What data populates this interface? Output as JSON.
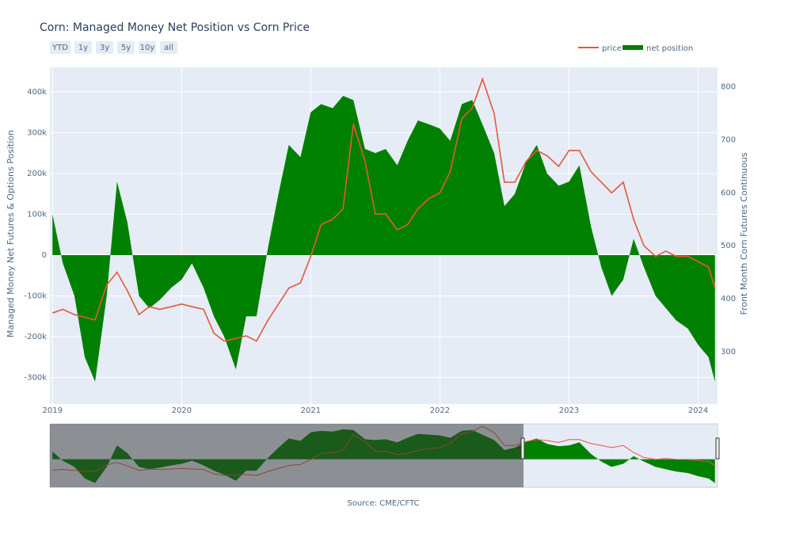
{
  "chart_data": {
    "type": "line",
    "title": "Corn: Managed Money Net Position vs Corn Price",
    "range_buttons": [
      "YTD",
      "1y",
      "3y",
      "5y",
      "10y",
      "all"
    ],
    "y_label": "Managed Money Net Futures & Options Position",
    "y2_label": "Front Month Corn Futures Continuous",
    "source": "Source: CME/CFTC",
    "x": [
      2019.0,
      2019.08,
      2019.17,
      2019.25,
      2019.33,
      2019.42,
      2019.5,
      2019.58,
      2019.67,
      2019.75,
      2019.83,
      2019.92,
      2020.0,
      2020.08,
      2020.17,
      2020.25,
      2020.33,
      2020.42,
      2020.5,
      2020.58,
      2020.67,
      2020.75,
      2020.83,
      2020.92,
      2021.0,
      2021.08,
      2021.17,
      2021.25,
      2021.33,
      2021.42,
      2021.5,
      2021.58,
      2021.67,
      2021.75,
      2021.83,
      2021.92,
      2022.0,
      2022.08,
      2022.17,
      2022.25,
      2022.33,
      2022.42,
      2022.5,
      2022.58,
      2022.67,
      2022.75,
      2022.83,
      2022.92,
      2023.0,
      2023.08,
      2023.17,
      2023.25,
      2023.33,
      2023.42,
      2023.5,
      2023.58,
      2023.67,
      2023.75,
      2023.83,
      2023.92,
      2024.0,
      2024.08,
      2024.13
    ],
    "series": [
      {
        "name": "price",
        "type": "line",
        "axis": "y2",
        "color": "#e4573c",
        "values": [
          373,
          380,
          370,
          365,
          360,
          426,
          450,
          415,
          370,
          385,
          380,
          385,
          390,
          385,
          380,
          335,
          320,
          325,
          330,
          320,
          360,
          390,
          420,
          430,
          480,
          540,
          550,
          570,
          730,
          660,
          560,
          560,
          530,
          540,
          570,
          590,
          600,
          640,
          740,
          760,
          815,
          750,
          620,
          620,
          660,
          680,
          670,
          650,
          680,
          680,
          640,
          620,
          600,
          620,
          550,
          500,
          480,
          490,
          480,
          480,
          470,
          460,
          420
        ]
      },
      {
        "name": "net position",
        "type": "area",
        "color": "#008000",
        "values": [
          100000,
          -20000,
          -100000,
          -250000,
          -310000,
          -100000,
          180000,
          80000,
          -100000,
          -130000,
          -110000,
          -80000,
          -60000,
          -20000,
          -80000,
          -150000,
          -200000,
          -280000,
          -150000,
          -150000,
          20000,
          150000,
          270000,
          240000,
          350000,
          370000,
          360000,
          390000,
          380000,
          260000,
          250000,
          260000,
          220000,
          280000,
          330000,
          320000,
          310000,
          280000,
          370000,
          380000,
          320000,
          250000,
          120000,
          150000,
          230000,
          270000,
          200000,
          170000,
          180000,
          220000,
          70000,
          -30000,
          -100000,
          -60000,
          40000,
          -30000,
          -100000,
          -130000,
          -160000,
          -180000,
          -220000,
          -250000,
          -310000
        ]
      }
    ],
    "xlim": [
      2018.98,
      2024.15
    ],
    "xticks": [
      2019,
      2020,
      2021,
      2022,
      2023,
      2024
    ],
    "ylim": [
      -365000,
      460000
    ],
    "yticks": [
      {
        "value": -300000,
        "label": "-300k"
      },
      {
        "value": -200000,
        "label": "-200k"
      },
      {
        "value": -100000,
        "label": "-100k"
      },
      0,
      {
        "value": 100000,
        "label": "100k"
      },
      {
        "value": 200000,
        "label": "200k"
      },
      {
        "value": 300000,
        "label": "300k"
      },
      {
        "value": 400000,
        "label": "400k"
      }
    ],
    "y2lim": [
      201,
      837
    ],
    "y2ticks": [
      300,
      400,
      500,
      600,
      700,
      800
    ],
    "grid": true,
    "legend": "top-right"
  }
}
